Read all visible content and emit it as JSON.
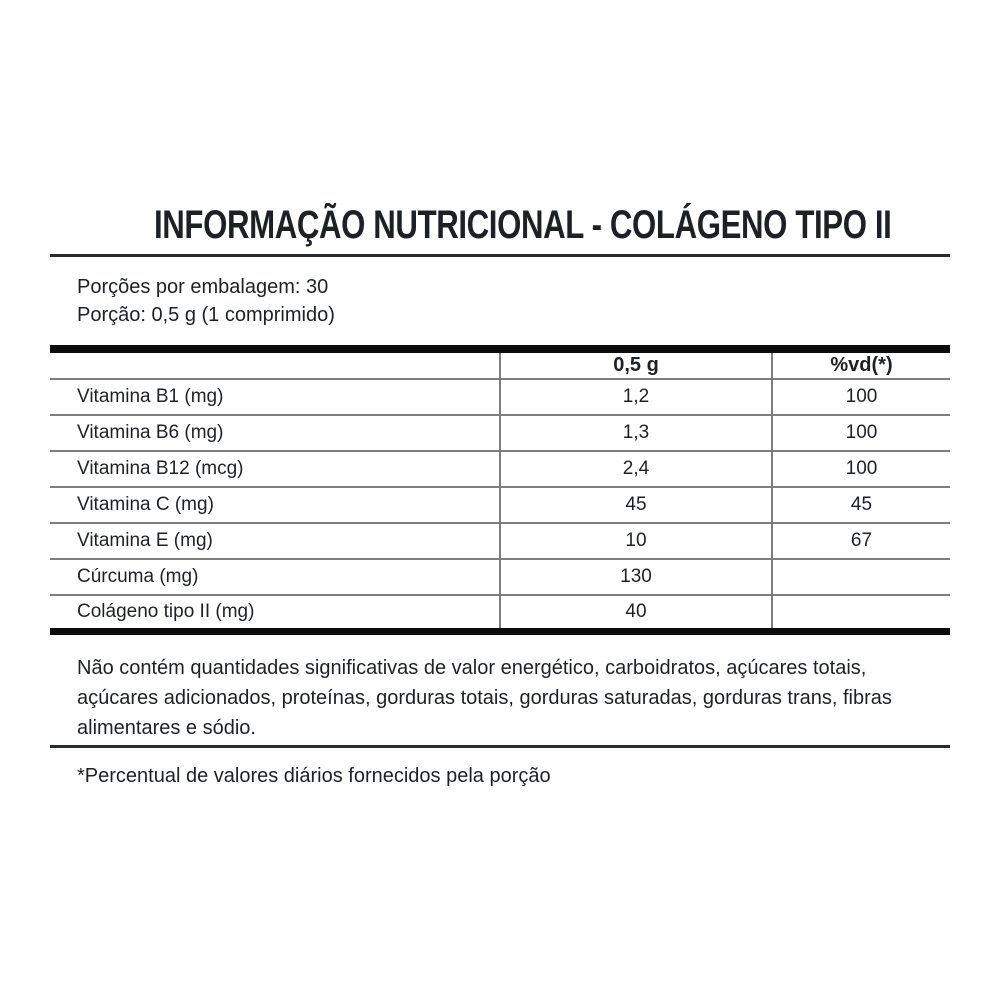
{
  "title": "INFORMAÇÃO NUTRICIONAL - COLÁGENO TIPO II",
  "serving_info": {
    "servings_per_package": "Porções por embalagem: 30",
    "serving_size": "Porção: 0,5 g (1 comprimido)"
  },
  "table": {
    "headers": {
      "nutrient": "",
      "amount": "0,5 g",
      "dv": "%vd(*)"
    },
    "rows": [
      {
        "label": "Vitamina B1 (mg)",
        "amount": "1,2",
        "dv": "100"
      },
      {
        "label": "Vitamina B6 (mg)",
        "amount": "1,3",
        "dv": "100"
      },
      {
        "label": "Vitamina B12 (mcg)",
        "amount": "2,4",
        "dv": "100"
      },
      {
        "label": "Vitamina C (mg)",
        "amount": "45",
        "dv": "45"
      },
      {
        "label": "Vitamina E (mg)",
        "amount": "10",
        "dv": "67"
      },
      {
        "label": "Cúrcuma (mg)",
        "amount": "130",
        "dv": ""
      },
      {
        "label": "Colágeno tipo II (mg)",
        "amount": "40",
        "dv": ""
      }
    ]
  },
  "notes": {
    "no_significant_amounts": "Não contém quantidades significativas de valor energético, carboidratos, açúcares totais, açúcares adicionados, proteínas, gorduras totais, gorduras saturadas, gorduras trans, fibras alimentares e sódio.",
    "daily_value_footnote": "*Percentual de valores diários fornecidos pela porção"
  },
  "colors": {
    "background": "#ffffff",
    "text": "#1d2126",
    "thick_rule": "#0c0c0c",
    "thin_rule": "#272c30",
    "row_separator": "#7d7d7d"
  }
}
